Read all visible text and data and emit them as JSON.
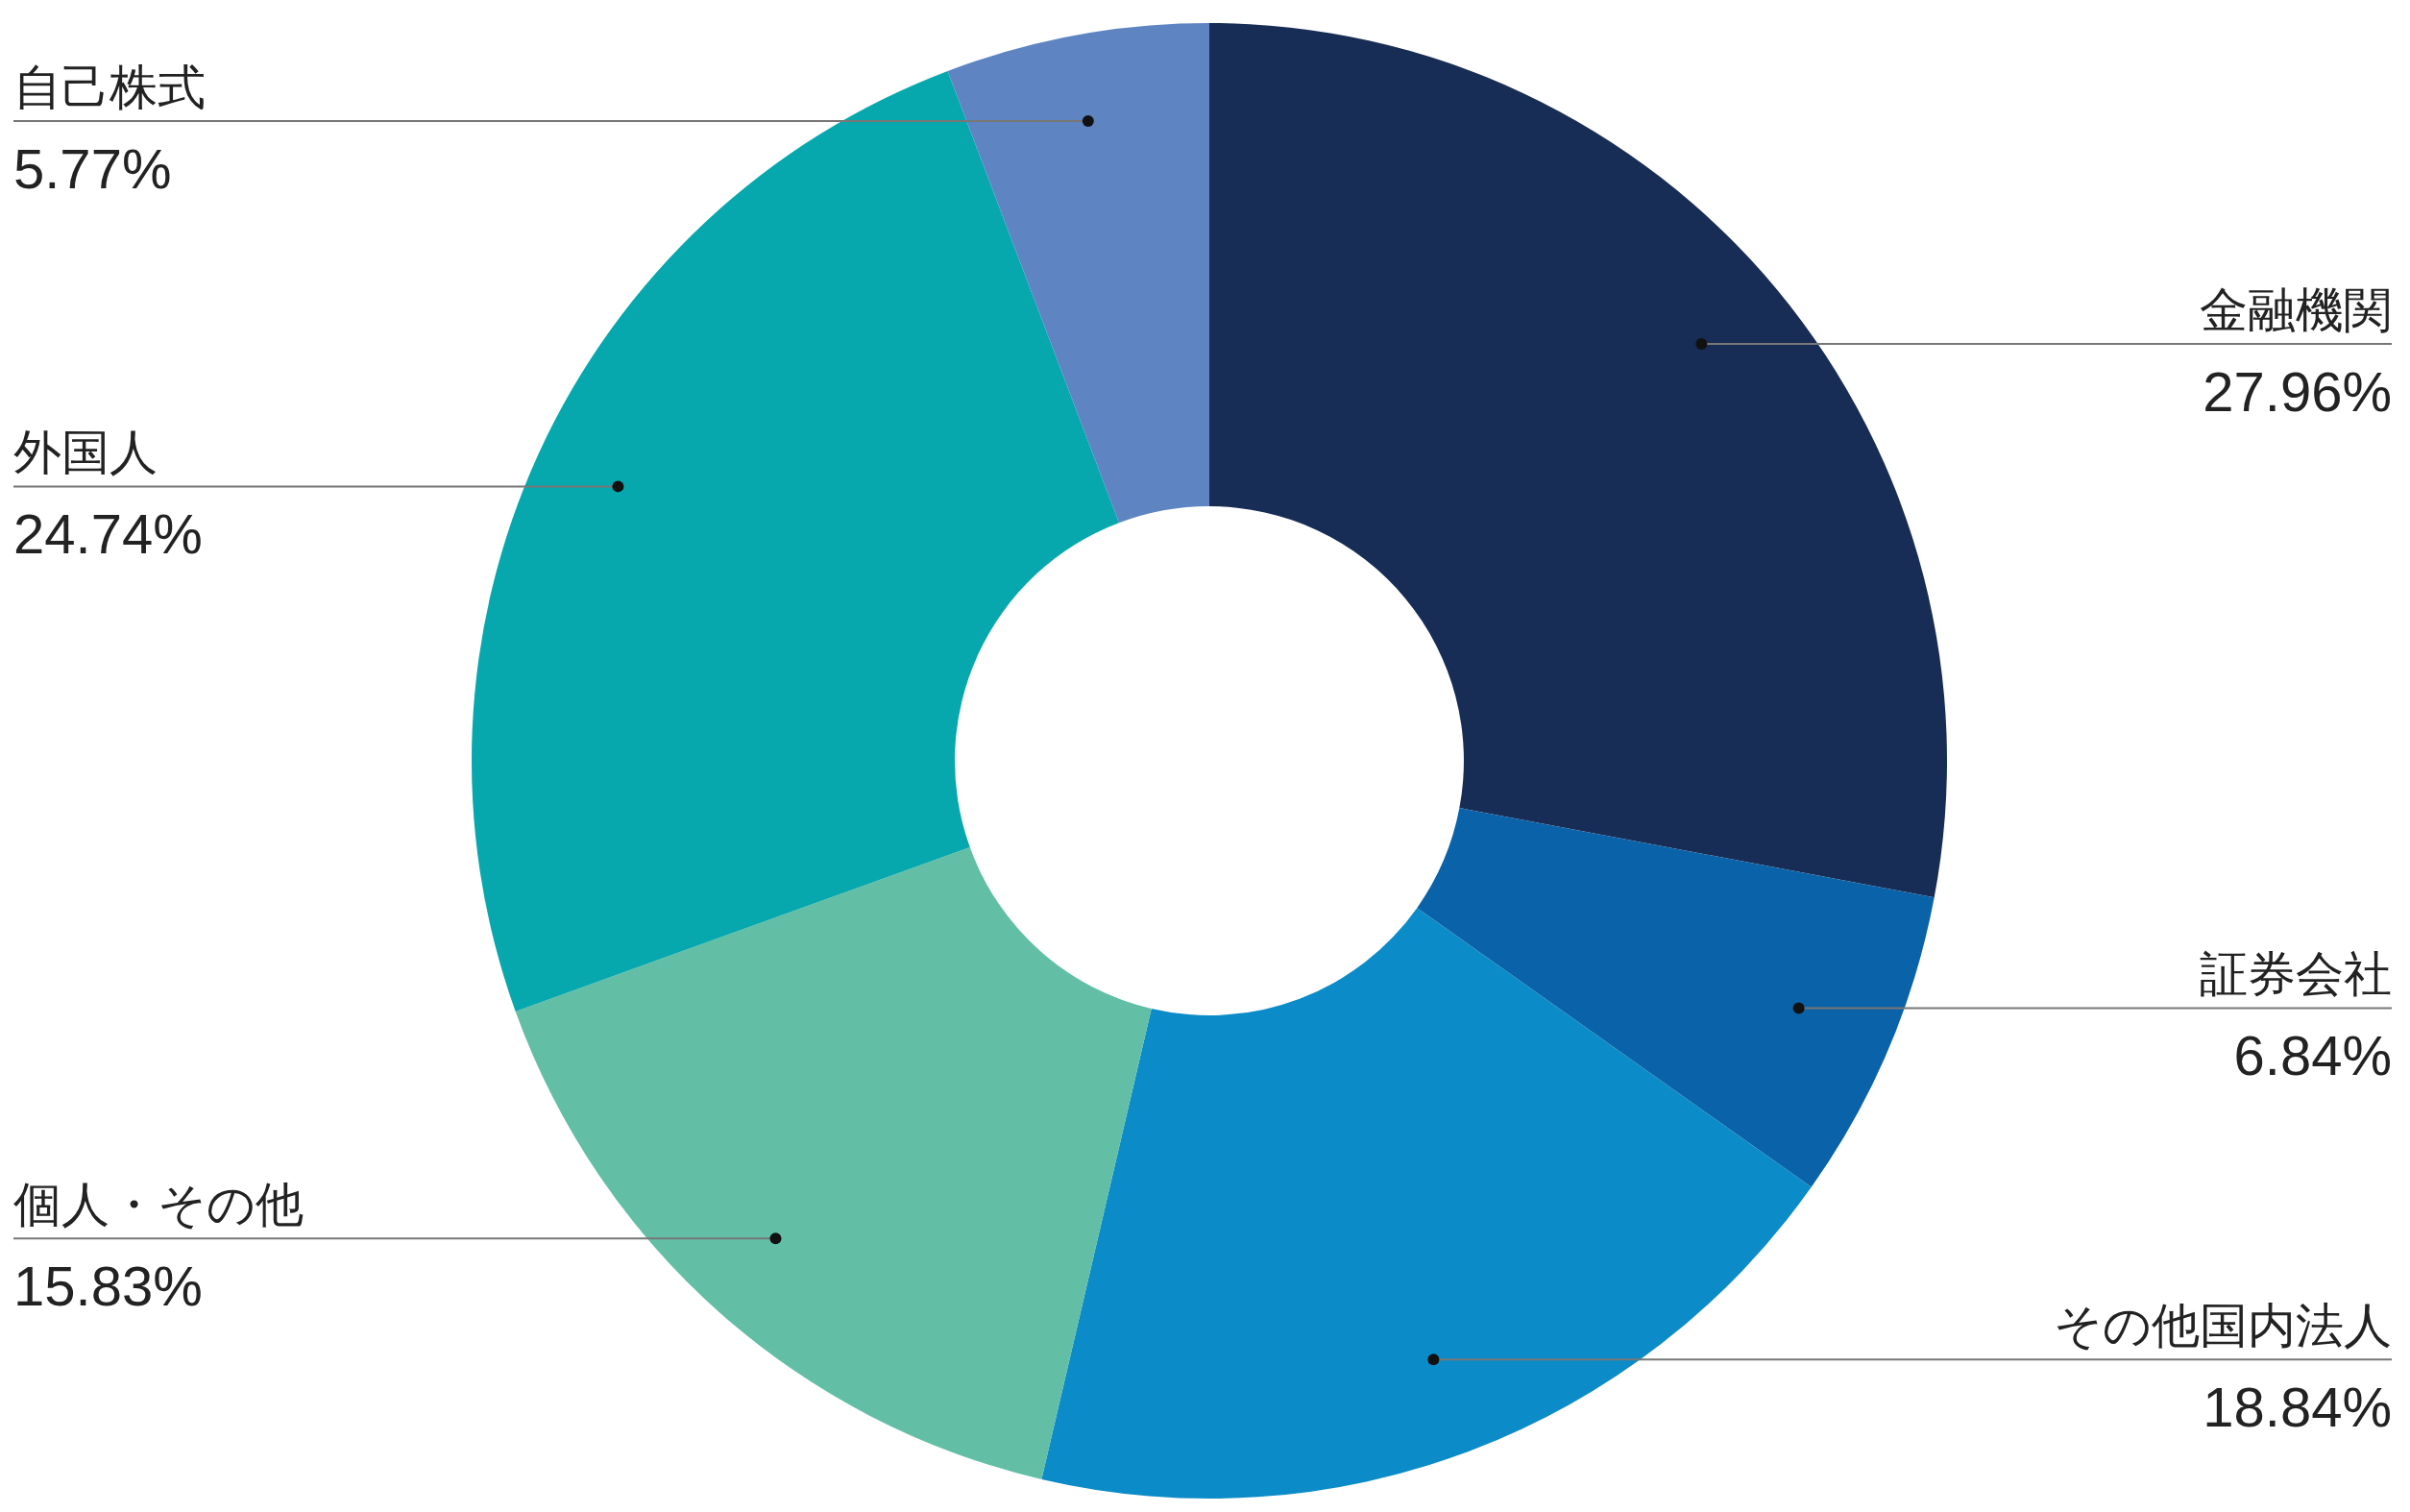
{
  "chart_data": {
    "type": "donut",
    "categories": [
      "金融機関",
      "証券会社",
      "その他国内法人",
      "個人・その他",
      "外国人",
      "自己株式"
    ],
    "values": [
      27.96,
      6.84,
      18.84,
      15.83,
      24.74,
      5.77
    ],
    "value_labels": [
      "27.96%",
      "6.84%",
      "18.84%",
      "15.83%",
      "24.74%",
      "5.77%"
    ],
    "colors": [
      "#182d55",
      "#0a62a8",
      "#0b8bc7",
      "#62bfa6",
      "#07a8ad",
      "#5e84c2"
    ]
  }
}
